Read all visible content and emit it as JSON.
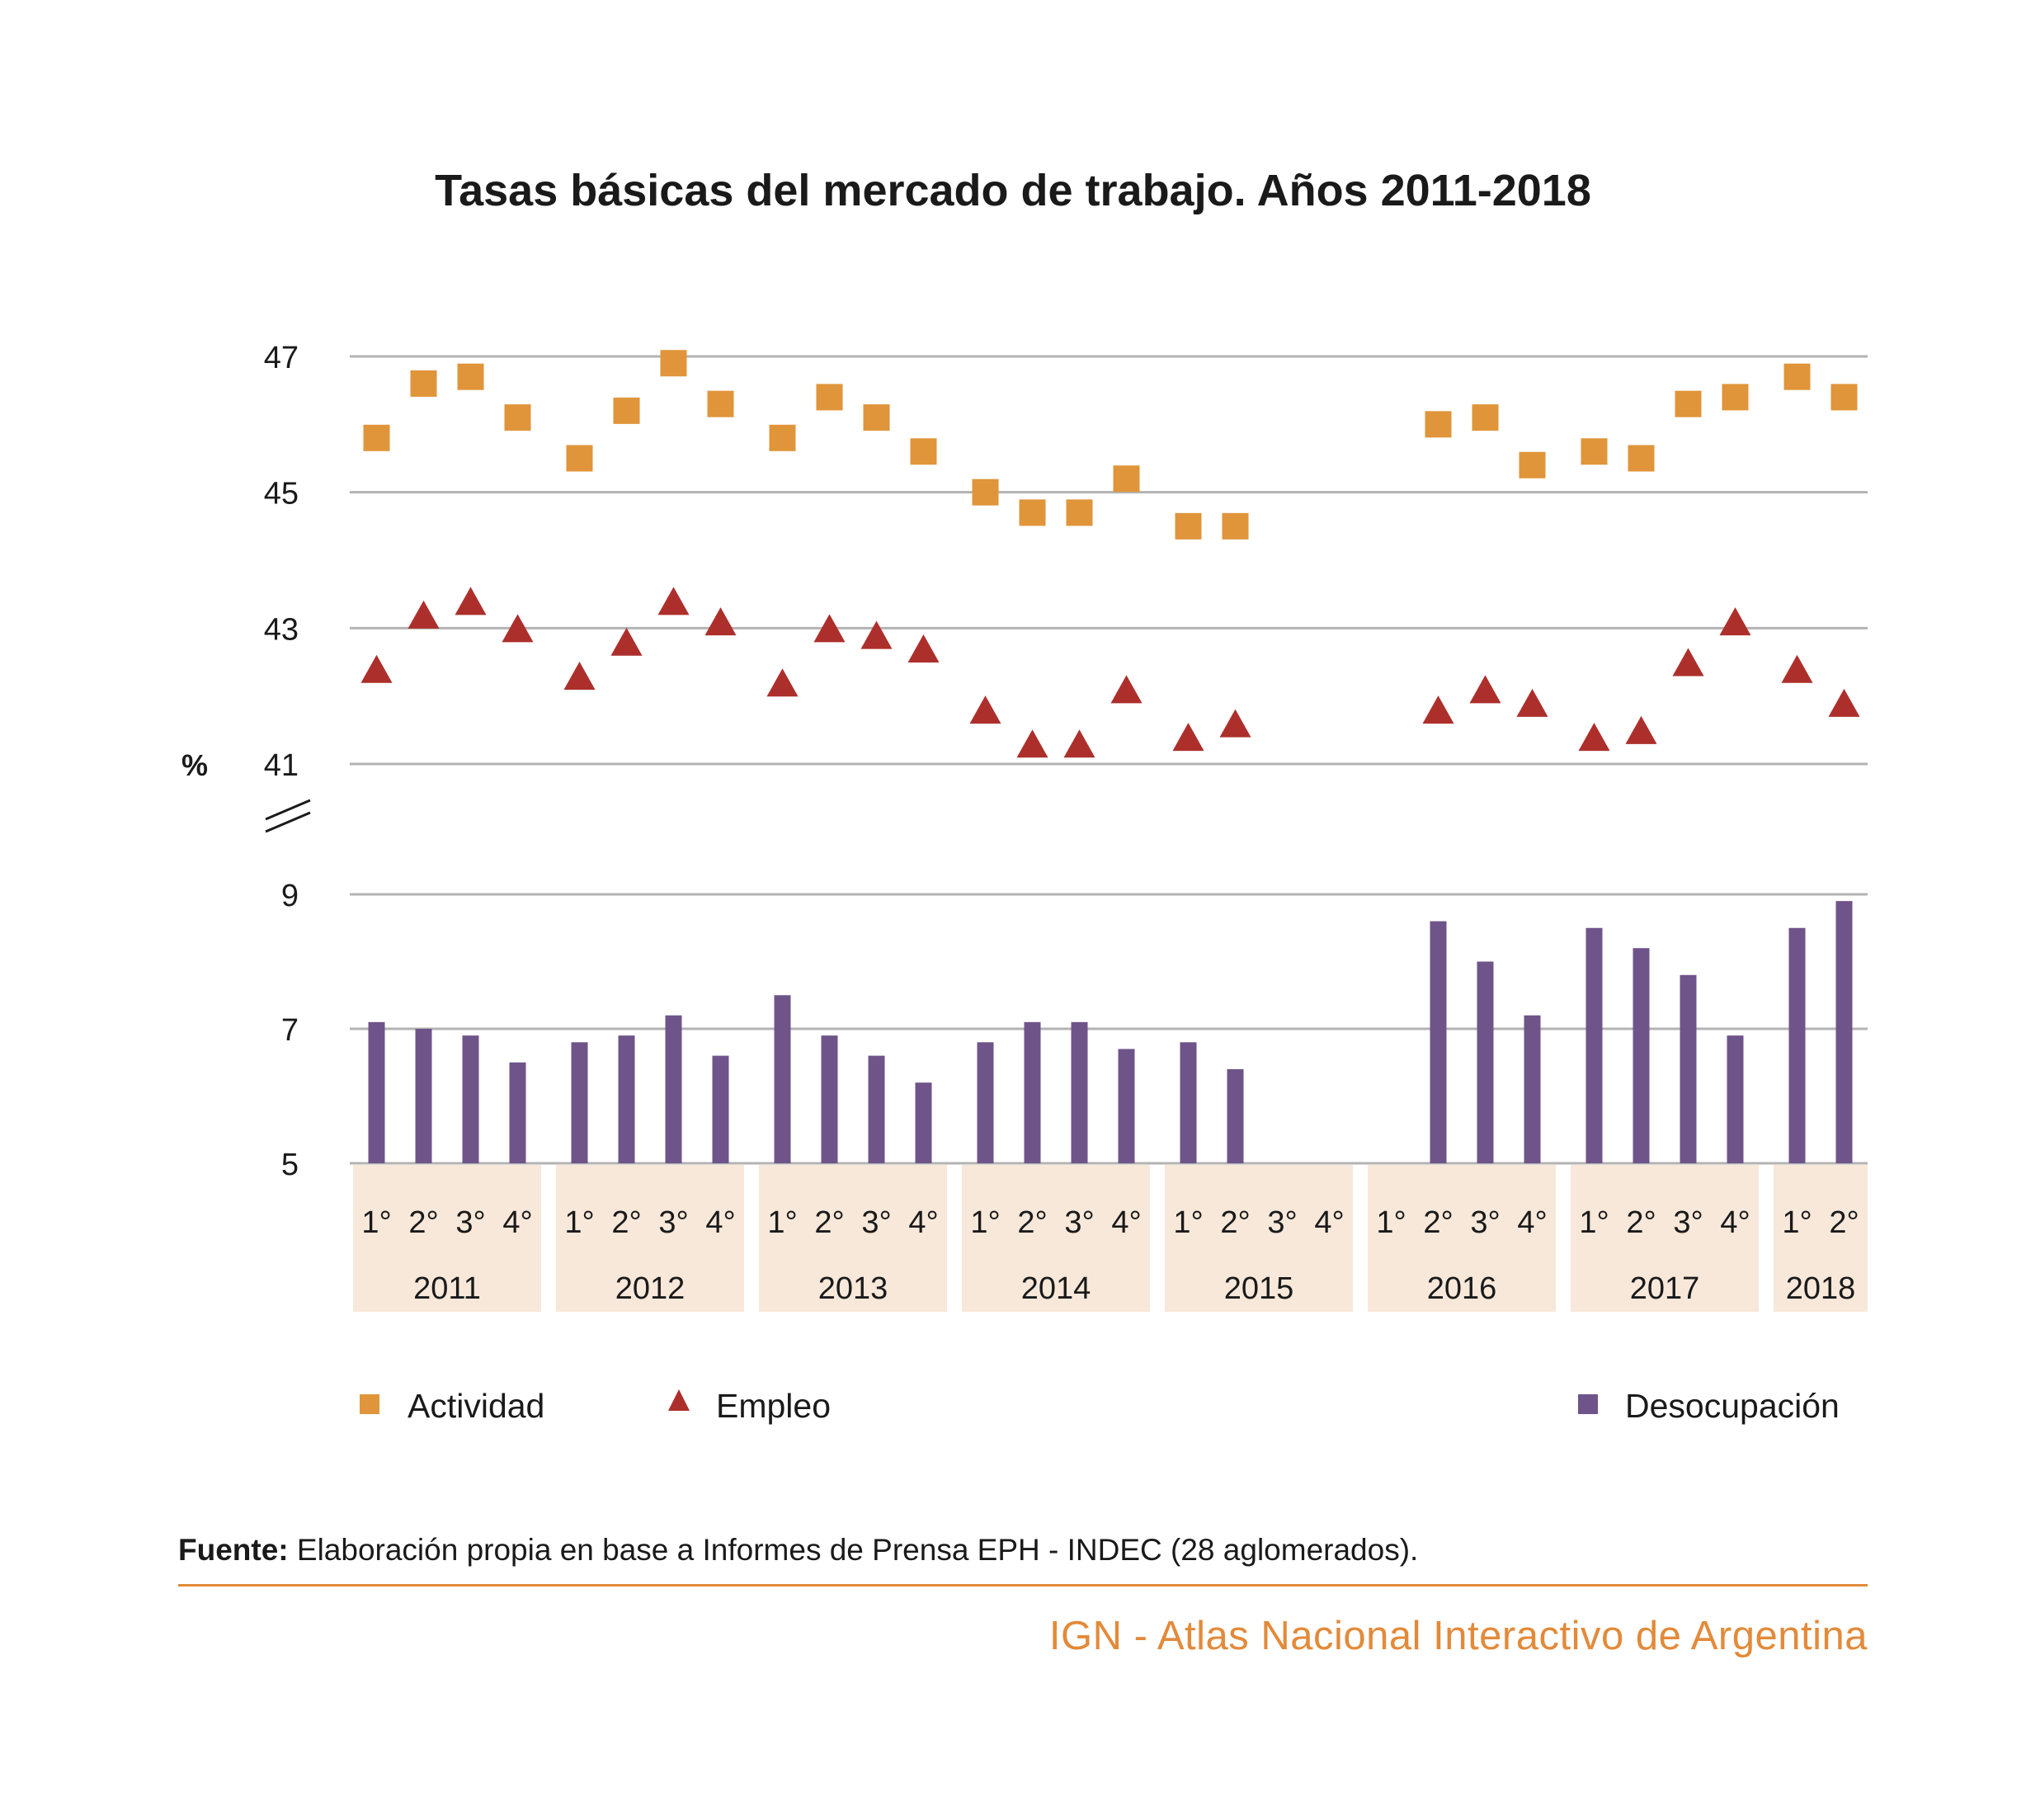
{
  "title": "Tasas básicas del mercado de trabajo. Años 2011-2018",
  "source_label": "Fuente:",
  "source_text": " Elaboración propia en base a Informes de Prensa EPH - INDEC (28 aglomerados).",
  "footer": "IGN - Atlas Nacional Interactivo de Argentina",
  "colors": {
    "actividad": "#e0953a",
    "empleo": "#ad2f2b",
    "desocupacion": "#6f548a",
    "year_band": "#f7e8da",
    "grid": "#b3b3b3",
    "footer": "#e38a3a"
  },
  "chart_data": {
    "type": "scatter+bar",
    "y_unit": "%",
    "upper_axis": {
      "ticks": [
        41,
        43,
        45,
        47
      ],
      "range": [
        41,
        47
      ]
    },
    "lower_axis": {
      "ticks": [
        5,
        7,
        9
      ],
      "range": [
        5,
        9
      ]
    },
    "quarter_labels": [
      "1°",
      "2°",
      "3°",
      "4°",
      "1°",
      "2°",
      "3°",
      "4°",
      "1°",
      "2°",
      "3°",
      "4°",
      "1°",
      "2°",
      "3°",
      "4°",
      "1°",
      "2°",
      "3°",
      "4°",
      "1°",
      "2°",
      "3°",
      "4°",
      "1°",
      "2°",
      "3°",
      "4°",
      "1°",
      "2°"
    ],
    "years": [
      {
        "label": "2011",
        "quarters": 4
      },
      {
        "label": "2012",
        "quarters": 4
      },
      {
        "label": "2013",
        "quarters": 4
      },
      {
        "label": "2014",
        "quarters": 4
      },
      {
        "label": "2015",
        "quarters": 4
      },
      {
        "label": "2016",
        "quarters": 4
      },
      {
        "label": "2017",
        "quarters": 4
      },
      {
        "label": "2018",
        "quarters": 2
      }
    ],
    "series": [
      {
        "name": "Actividad",
        "marker": "square",
        "values": [
          45.8,
          46.6,
          46.7,
          46.1,
          45.5,
          46.2,
          46.9,
          46.3,
          45.8,
          46.4,
          46.1,
          45.6,
          45.0,
          44.7,
          44.7,
          45.2,
          44.5,
          44.5,
          null,
          null,
          null,
          46.0,
          46.1,
          45.4,
          45.6,
          45.5,
          46.3,
          46.4,
          46.7,
          46.4
        ]
      },
      {
        "name": "Empleo",
        "marker": "triangle",
        "values": [
          42.4,
          43.2,
          43.4,
          43.0,
          42.3,
          42.8,
          43.4,
          43.1,
          42.2,
          43.0,
          42.9,
          42.7,
          41.8,
          41.3,
          41.3,
          42.1,
          41.4,
          41.6,
          null,
          null,
          null,
          41.8,
          42.1,
          41.9,
          41.4,
          41.5,
          42.5,
          43.1,
          42.4,
          41.9
        ]
      },
      {
        "name": "Desocupación",
        "marker": "bar",
        "values": [
          7.1,
          7.0,
          6.9,
          6.5,
          6.8,
          6.9,
          7.2,
          6.6,
          7.5,
          6.9,
          6.6,
          6.2,
          6.8,
          7.1,
          7.1,
          6.7,
          6.8,
          6.4,
          null,
          null,
          null,
          8.6,
          8.0,
          7.2,
          8.5,
          8.2,
          7.8,
          6.9,
          8.5,
          8.9
        ]
      }
    ],
    "legend": [
      "Actividad",
      "Empleo",
      "Desocupación"
    ]
  }
}
